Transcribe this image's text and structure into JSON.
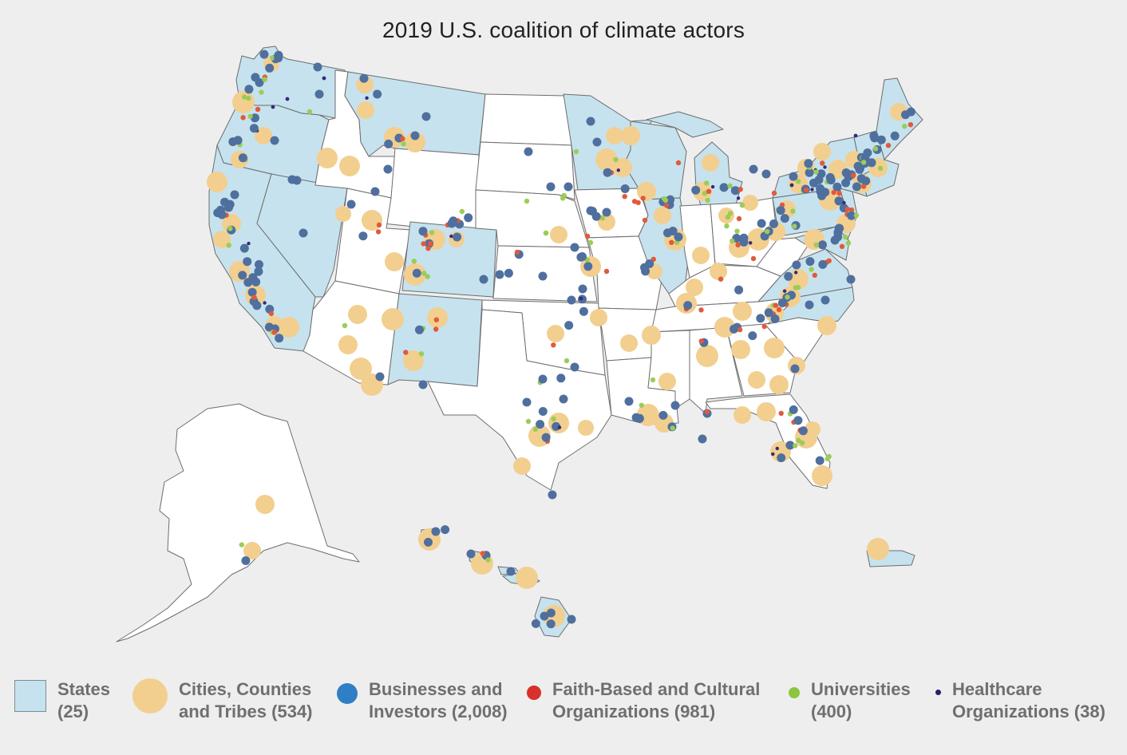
{
  "title": "2019 U.S. coalition of climate actors",
  "colors": {
    "background": "#eeeeee",
    "state_member_fill": "#c6e2ee",
    "state_other_fill": "#ffffff",
    "state_border": "#6d6d6d",
    "cities": "#f2cf8f",
    "businesses": "#4f6f9e",
    "faith": "#e05a3c",
    "universities": "#9ccc58",
    "healthcare": "#352a7a"
  },
  "legend": {
    "states": {
      "line1": "States",
      "line2": "(25)",
      "color": "#c6e2ee"
    },
    "cities": {
      "line1": "Cities, Counties",
      "line2": "and Tribes (534)",
      "color": "#f2cf8f"
    },
    "businesses": {
      "line1": "Businesses and",
      "line2": "Investors (2,008)",
      "color": "#2f7fc6"
    },
    "faith": {
      "line1": "Faith-Based and Cultural",
      "line2": "Organizations (981)",
      "color": "#d8302b"
    },
    "universities": {
      "line1": "Universities",
      "line2": "(400)",
      "color": "#8cc63f"
    },
    "healthcare": {
      "line1": "Healthcare",
      "line2": "Organizations (38)",
      "color": "#2b1f6b"
    }
  },
  "member_states": [
    "Washington",
    "Oregon",
    "California",
    "Nevada",
    "Montana",
    "Colorado",
    "New Mexico",
    "Minnesota",
    "Wisconsin",
    "Michigan",
    "Illinois",
    "Virginia",
    "North Carolina",
    "Pennsylvania",
    "New York",
    "Vermont",
    "New Hampshire",
    "Maine",
    "Massachusetts",
    "Rhode Island",
    "Connecticut",
    "New Jersey",
    "Delaware",
    "Maryland",
    "Hawaii",
    "Puerto Rico"
  ]
}
